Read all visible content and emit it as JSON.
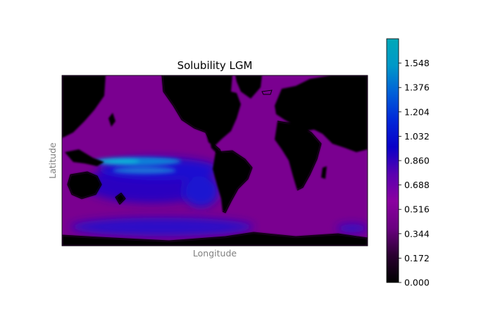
{
  "chart_data": {
    "type": "heatmap",
    "title": "Solubility LGM",
    "xlabel": "Longitude",
    "ylabel": "Latitude",
    "colorbar": {
      "min": 0.0,
      "max": 1.72,
      "ticks": [
        "0.000",
        "0.172",
        "0.344",
        "0.516",
        "0.688",
        "0.860",
        "1.032",
        "1.204",
        "1.376",
        "1.548"
      ],
      "colormap": [
        "#000000",
        "#2a0030",
        "#6a0080",
        "#8a00a0",
        "#5a00b0",
        "#0a00c8",
        "#0028d8",
        "#0060d8",
        "#0098c8",
        "#00a8b8"
      ]
    },
    "map": {
      "projection": "plate-carree",
      "coastlines": true,
      "land_color": "#000000",
      "ocean_base_color": "#7a0090",
      "features": [
        {
          "region": "Western Pacific equatorial band",
          "approx_value": 1.5
        },
        {
          "region": "Equatorial Pacific / South Pacific",
          "approx_value": 0.95
        },
        {
          "region": "Southern Ocean band",
          "approx_value": 0.9
        },
        {
          "region": "Mid-latitude oceans",
          "approx_value": 0.5
        },
        {
          "region": "Continents",
          "approx_value": 0.0
        }
      ]
    }
  }
}
